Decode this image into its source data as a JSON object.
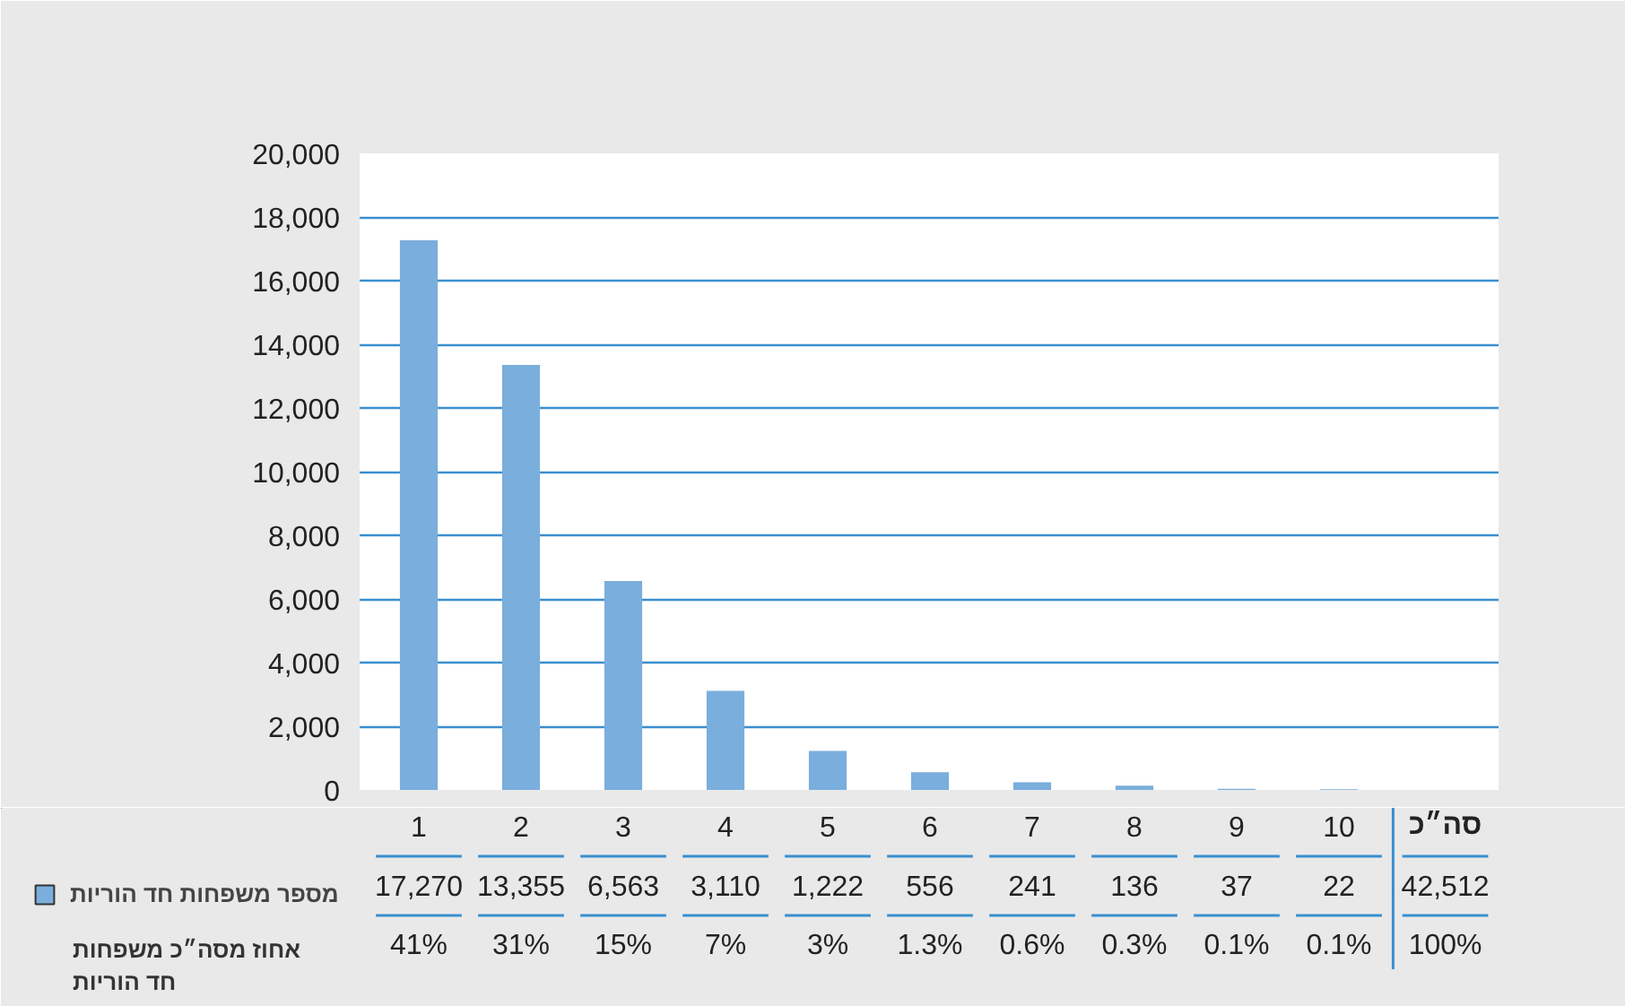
{
  "chart_data": {
    "type": "bar",
    "categories": [
      "1",
      "2",
      "3",
      "4",
      "5",
      "6",
      "7",
      "8",
      "9",
      "10"
    ],
    "series": [
      {
        "name": "מספר משפחות חד הוריות",
        "color": "#7aaedc",
        "values": [
          17270,
          13355,
          6563,
          3110,
          1222,
          556,
          241,
          136,
          37,
          22
        ],
        "value_labels": [
          "17,270",
          "13,355",
          "6,563",
          "3,110",
          "1,222",
          "556",
          "241",
          "136",
          "37",
          "22"
        ]
      }
    ],
    "ylim": [
      0,
      20000
    ],
    "yticks": [
      {
        "value": 0,
        "label": "0"
      },
      {
        "value": 2000,
        "label": "2,000"
      },
      {
        "value": 4000,
        "label": "4,000"
      },
      {
        "value": 6000,
        "label": "6,000"
      },
      {
        "value": 8000,
        "label": "8,000"
      },
      {
        "value": 10000,
        "label": "10,000"
      },
      {
        "value": 12000,
        "label": "12,000"
      },
      {
        "value": 14000,
        "label": "14,000"
      },
      {
        "value": 16000,
        "label": "16,000"
      },
      {
        "value": 18000,
        "label": "18,000"
      },
      {
        "value": 20000,
        "label": "20,000"
      }
    ],
    "grid": "y",
    "legend": "bottom left",
    "annotations": [
      "אחוז מסה״כ משפחות חד הוריות",
      "סה״כ",
      "42,512",
      "100%",
      "41%",
      "31%",
      "15%",
      "7%",
      "3%",
      "1.3%",
      "0.6%",
      "0.3%",
      "0.1%",
      "0.1%"
    ]
  }
}
